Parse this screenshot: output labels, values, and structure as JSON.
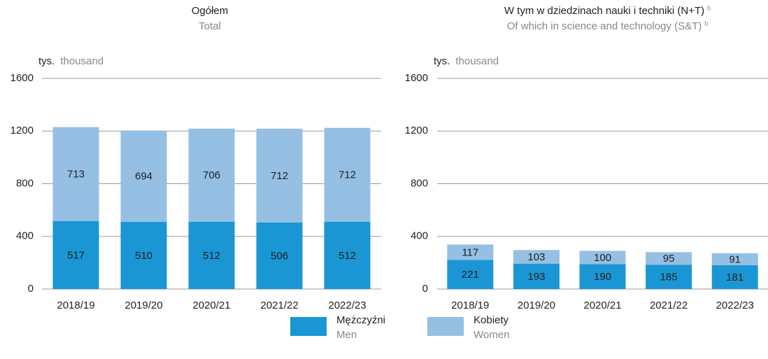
{
  "chart_data": [
    {
      "type": "stacked_bar",
      "title": "Ogółem",
      "subtitle": "Total",
      "unit": "tys.",
      "unit_en": "thousand",
      "categories": [
        "2018/19",
        "2019/20",
        "2020/21",
        "2021/22",
        "2022/23"
      ],
      "series": [
        {
          "name": "Mężczyźni",
          "name_en": "Men",
          "color": "#1a96d4",
          "values": [
            517,
            510,
            512,
            506,
            512
          ]
        },
        {
          "name": "Kobiety",
          "name_en": "Women",
          "color": "#95bfe3",
          "values": [
            713,
            694,
            706,
            712,
            712
          ]
        }
      ],
      "ylim": [
        0,
        1600
      ],
      "yticks": [
        0,
        400,
        800,
        1200,
        1600
      ],
      "grid": true
    },
    {
      "type": "stacked_bar",
      "title": "W tym w dziedzinach nauki i techniki (N+T)",
      "subtitle": "Of which in science and technology (S&T)",
      "title_note": "b",
      "unit": "tys.",
      "unit_en": "thousand",
      "categories": [
        "2018/19",
        "2019/20",
        "2020/21",
        "2021/22",
        "2022/23"
      ],
      "series": [
        {
          "name": "Mężczyźni",
          "name_en": "Men",
          "color": "#1a96d4",
          "values": [
            221,
            193,
            190,
            185,
            181
          ]
        },
        {
          "name": "Kobiety",
          "name_en": "Women",
          "color": "#95bfe3",
          "values": [
            117,
            103,
            100,
            95,
            91
          ]
        }
      ],
      "ylim": [
        0,
        1600
      ],
      "yticks": [
        0,
        400,
        800,
        1200,
        1600
      ],
      "grid": true
    }
  ]
}
